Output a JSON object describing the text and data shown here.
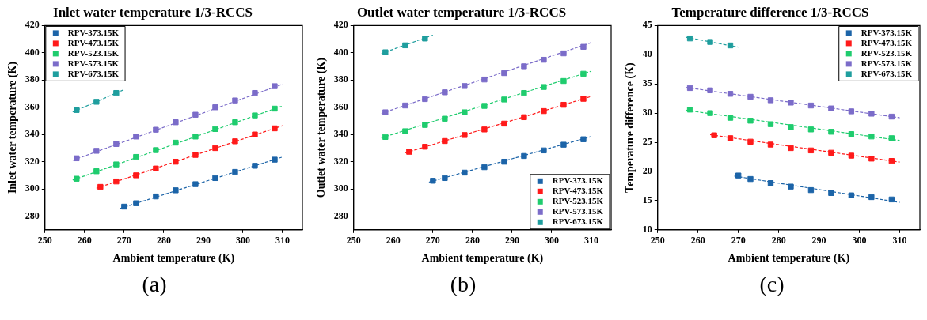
{
  "chart_data": [
    {
      "type": "scatter",
      "title": "Inlet water temperature 1/3-RCCS",
      "xlabel": "Ambient temperature (K)",
      "ylabel": "Inlet water temperature (K)",
      "xlim": [
        250,
        315
      ],
      "xticks": [
        250,
        260,
        270,
        280,
        290,
        300,
        310
      ],
      "ylim": [
        270,
        420
      ],
      "yticks": [
        280,
        300,
        320,
        340,
        360,
        380,
        400,
        420
      ],
      "grid": false,
      "legend": "top left",
      "marker": "square",
      "annotations": [
        "(a)"
      ],
      "series": [
        {
          "name": "RPV-373.15K",
          "type": "scatter",
          "color": "#1c64a8",
          "x": [
            270,
            273,
            278,
            283,
            288,
            293,
            298,
            303,
            308
          ],
          "values": [
            287,
            289.5,
            294.5,
            299,
            303.5,
            308,
            312.5,
            317,
            321.5
          ]
        },
        {
          "name": "RPV-473.15K",
          "type": "scatter",
          "color": "#ff1a1a",
          "x": [
            264,
            268,
            273,
            278,
            283,
            288,
            293,
            298,
            303,
            308
          ],
          "values": [
            301.5,
            305.5,
            310,
            315,
            320,
            325,
            330,
            335,
            340,
            344.5
          ]
        },
        {
          "name": "RPV-523.15K",
          "type": "scatter",
          "color": "#1fcc6e",
          "x": [
            258,
            263,
            268,
            273,
            278,
            283,
            288,
            293,
            298,
            303,
            308
          ],
          "values": [
            307.5,
            313,
            318,
            323.5,
            328.5,
            334,
            338.5,
            344,
            349,
            354,
            359
          ]
        },
        {
          "name": "RPV-573.15K",
          "type": "scatter",
          "color": "#7b6cc9",
          "x": [
            258,
            263,
            268,
            273,
            278,
            283,
            288,
            293,
            298,
            303,
            308
          ],
          "values": [
            322.5,
            328,
            333,
            338.5,
            343.5,
            349,
            354.5,
            360,
            365,
            370.5,
            375.5
          ]
        },
        {
          "name": "RPV-673.15K",
          "type": "scatter",
          "color": "#1f9e9e",
          "x": [
            258,
            263,
            268
          ],
          "values": [
            358,
            364,
            370.5
          ]
        },
        {
          "type": "line",
          "marker": "none",
          "line_style": "dashed",
          "color": "#1c64a8",
          "x": [
            269,
            310
          ],
          "values": [
            285.7,
            323.5
          ]
        },
        {
          "type": "line",
          "marker": "none",
          "line_style": "dashed",
          "color": "#ff1a1a",
          "x": [
            263,
            310
          ],
          "values": [
            300.5,
            346.5
          ]
        },
        {
          "type": "line",
          "marker": "none",
          "line_style": "dashed",
          "color": "#1fcc6e",
          "x": [
            257,
            310
          ],
          "values": [
            306.5,
            361
          ]
        },
        {
          "type": "line",
          "marker": "none",
          "line_style": "dashed",
          "color": "#7b6cc9",
          "x": [
            257,
            310
          ],
          "values": [
            321,
            377
          ]
        },
        {
          "type": "line",
          "marker": "none",
          "line_style": "dashed",
          "color": "#1f9e9e",
          "x": [
            257,
            270
          ],
          "values": [
            356.5,
            373
          ]
        }
      ]
    },
    {
      "type": "scatter",
      "title": "Outlet water temperature 1/3-RCCS",
      "xlabel": "Ambient temperature (K)",
      "ylabel": "Outlet water temperature (K)",
      "xlim": [
        250,
        315
      ],
      "xticks": [
        250,
        260,
        270,
        280,
        290,
        300,
        310
      ],
      "ylim": [
        270,
        420
      ],
      "yticks": [
        280,
        300,
        320,
        340,
        360,
        380,
        400,
        420
      ],
      "grid": false,
      "legend": "bottom right",
      "marker": "square",
      "annotations": [
        "(b)"
      ],
      "series": [
        {
          "name": "RPV-373.15K",
          "type": "scatter",
          "color": "#1c64a8",
          "x": [
            270,
            273,
            278,
            283,
            288,
            293,
            298,
            303,
            308
          ],
          "values": [
            306,
            308,
            312,
            316,
            320,
            324.2,
            328.3,
            332.5,
            336.5
          ]
        },
        {
          "name": "RPV-473.15K",
          "type": "scatter",
          "color": "#ff1a1a",
          "x": [
            264,
            268,
            273,
            278,
            283,
            288,
            293,
            298,
            303,
            308
          ],
          "values": [
            327.3,
            331,
            335.2,
            339.6,
            343.7,
            348,
            352.7,
            357.2,
            361.8,
            366.2
          ]
        },
        {
          "name": "RPV-523.15K",
          "type": "scatter",
          "color": "#1fcc6e",
          "x": [
            258,
            263,
            268,
            273,
            278,
            283,
            288,
            293,
            298,
            303,
            308
          ],
          "values": [
            338.2,
            342.4,
            347,
            351.6,
            356.3,
            361,
            365.7,
            370.5,
            374.9,
            379.3,
            384.6
          ]
        },
        {
          "name": "RPV-573.15K",
          "type": "scatter",
          "color": "#7b6cc9",
          "x": [
            258,
            263,
            268,
            273,
            278,
            283,
            288,
            293,
            298,
            303,
            308
          ],
          "values": [
            356.3,
            361.3,
            366,
            371,
            375.6,
            380.4,
            385.1,
            390.1,
            394.9,
            399.6,
            404.4
          ]
        },
        {
          "name": "RPV-673.15K",
          "type": "scatter",
          "color": "#1f9e9e",
          "x": [
            258,
            263,
            268
          ],
          "values": [
            400.4,
            405.5,
            410.5
          ]
        },
        {
          "type": "line",
          "marker": "none",
          "line_style": "dashed",
          "color": "#1c64a8",
          "x": [
            269,
            310
          ],
          "values": [
            305,
            338.5
          ]
        },
        {
          "type": "line",
          "marker": "none",
          "line_style": "dashed",
          "color": "#ff1a1a",
          "x": [
            263,
            310
          ],
          "values": [
            326.5,
            368
          ]
        },
        {
          "type": "line",
          "marker": "none",
          "line_style": "dashed",
          "color": "#1fcc6e",
          "x": [
            257,
            310
          ],
          "values": [
            337.5,
            386.5
          ]
        },
        {
          "type": "line",
          "marker": "none",
          "line_style": "dashed",
          "color": "#7b6cc9",
          "x": [
            257,
            310
          ],
          "values": [
            355.5,
            407.5
          ]
        },
        {
          "type": "line",
          "marker": "none",
          "line_style": "dashed",
          "color": "#1f9e9e",
          "x": [
            257,
            270
          ],
          "values": [
            399.5,
            413
          ]
        }
      ]
    },
    {
      "type": "scatter",
      "title": "Temperature difference 1/3-RCCS",
      "xlabel": "Ambient temperature (K)",
      "ylabel": "Temperature difference (K)",
      "xlim": [
        250,
        315
      ],
      "xticks": [
        250,
        260,
        270,
        280,
        290,
        300,
        310
      ],
      "ylim": [
        10,
        45
      ],
      "yticks": [
        10,
        15,
        20,
        25,
        30,
        35,
        40,
        45
      ],
      "grid": false,
      "legend": "top right",
      "marker": "square",
      "annotations": [
        "(c)"
      ],
      "series": [
        {
          "name": "RPV-373.15K",
          "type": "scatter",
          "color": "#1c64a8",
          "x": [
            270,
            273,
            278,
            283,
            288,
            293,
            298,
            303,
            308
          ],
          "values": [
            19.3,
            18.7,
            18.0,
            17.4,
            16.8,
            16.3,
            15.9,
            15.6,
            15.2
          ]
        },
        {
          "name": "RPV-473.15K",
          "type": "scatter",
          "color": "#ff1a1a",
          "x": [
            264,
            268,
            273,
            278,
            283,
            288,
            293,
            298,
            303,
            308
          ],
          "values": [
            26.2,
            25.7,
            25.1,
            24.6,
            24.0,
            23.6,
            23.2,
            22.7,
            22.2,
            21.8
          ]
        },
        {
          "name": "RPV-523.15K",
          "type": "scatter",
          "color": "#1fcc6e",
          "x": [
            258,
            263,
            268,
            273,
            278,
            283,
            288,
            293,
            298,
            303,
            308
          ],
          "values": [
            30.6,
            30.0,
            29.2,
            28.7,
            28.1,
            27.6,
            27.2,
            26.8,
            26.4,
            26.0,
            25.7
          ]
        },
        {
          "name": "RPV-573.15K",
          "type": "scatter",
          "color": "#7b6cc9",
          "x": [
            258,
            263,
            268,
            273,
            278,
            283,
            288,
            293,
            298,
            303,
            308
          ],
          "values": [
            34.3,
            33.9,
            33.3,
            32.8,
            32.2,
            31.8,
            31.3,
            30.8,
            30.3,
            29.9,
            29.4
          ]
        },
        {
          "name": "RPV-673.15K",
          "type": "scatter",
          "color": "#1f9e9e",
          "x": [
            258,
            263,
            268
          ],
          "values": [
            42.8,
            42.2,
            41.6
          ]
        },
        {
          "type": "line",
          "marker": "none",
          "line_style": "dashed",
          "color": "#1c64a8",
          "x": [
            269,
            310
          ],
          "values": [
            19.2,
            14.7
          ]
        },
        {
          "type": "line",
          "marker": "none",
          "line_style": "dashed",
          "color": "#ff1a1a",
          "x": [
            263,
            310
          ],
          "values": [
            26.3,
            21.6
          ]
        },
        {
          "type": "line",
          "marker": "none",
          "line_style": "dashed",
          "color": "#1fcc6e",
          "x": [
            257,
            310
          ],
          "values": [
            30.5,
            25.3
          ]
        },
        {
          "type": "line",
          "marker": "none",
          "line_style": "dashed",
          "color": "#7b6cc9",
          "x": [
            257,
            310
          ],
          "values": [
            34.4,
            29.2
          ]
        },
        {
          "type": "line",
          "marker": "none",
          "line_style": "dashed",
          "color": "#1f9e9e",
          "x": [
            257,
            270
          ],
          "values": [
            43.0,
            41.3
          ]
        }
      ]
    }
  ]
}
